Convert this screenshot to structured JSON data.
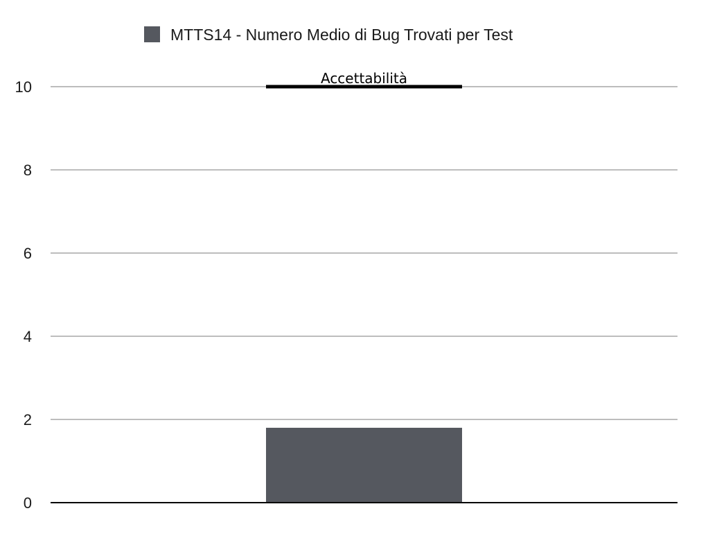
{
  "chart_data": {
    "type": "bar",
    "categories": [
      ""
    ],
    "series": [
      {
        "name": "MTTS14 - Numero Medio di Bug Trovati per Test",
        "values": [
          1.8
        ],
        "color": "#55585f"
      }
    ],
    "ylim": [
      0,
      10
    ],
    "yticks": [
      "0",
      "2",
      "4",
      "6",
      "8",
      "10"
    ],
    "grid": true,
    "legend_position": "top",
    "threshold": {
      "label": "Accettabilità",
      "value": 10,
      "color": "#000000"
    },
    "gridline_color": "#bdbdbd",
    "axis_color": "#000000"
  }
}
